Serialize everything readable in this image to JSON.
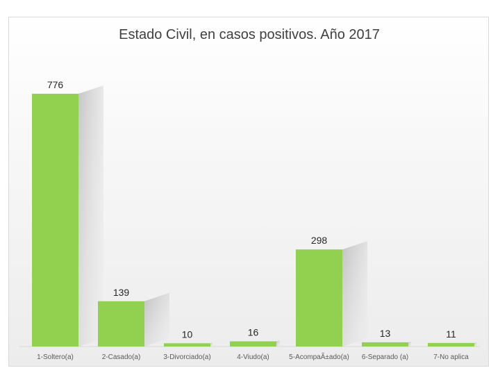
{
  "chart_data": {
    "type": "bar",
    "title": "Estado Civil, en casos positivos. Año 2017",
    "categories": [
      "1-Soltero(a)",
      "2-Casado(a)",
      "3-Divorciado(a)",
      "4-Viudo(a)",
      "5-AcompaÃ±ado(a)",
      "6-Separado (a)",
      "7-No aplica"
    ],
    "values": [
      776,
      139,
      10,
      16,
      298,
      13,
      11
    ],
    "xlabel": "",
    "ylabel": "",
    "ylim": [
      0,
      776
    ],
    "grid": false,
    "legend": "none",
    "bar_color": "#92d050"
  }
}
